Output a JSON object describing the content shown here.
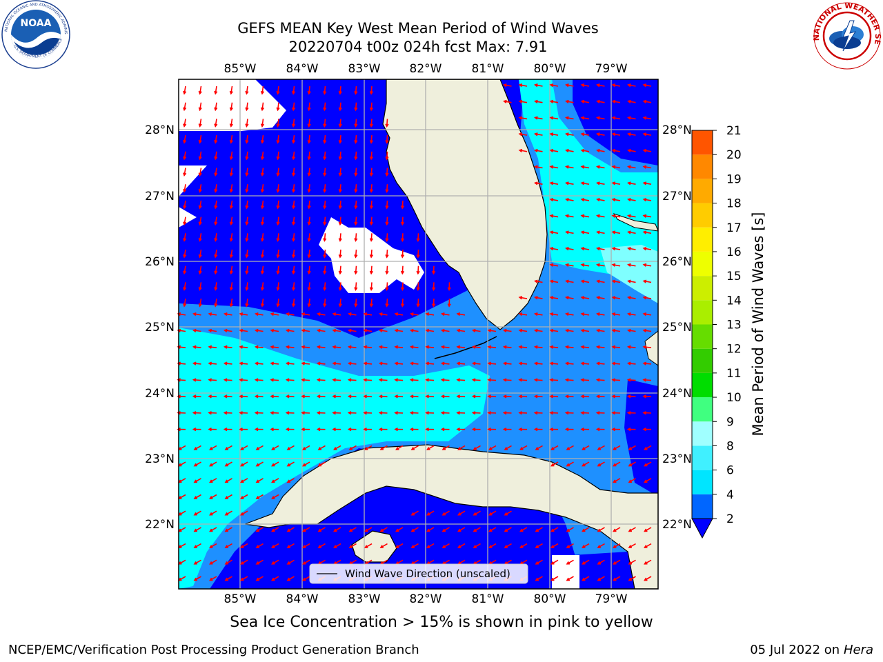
{
  "header": {
    "title_line1": "GEFS MEAN Key West Mean Period of Wind Waves",
    "title_line2": "20220704 t00z 024h fcst   Max: 7.91"
  },
  "logos": {
    "noaa": {
      "text": "NOAA",
      "ring_top": "NATIONAL OCEANIC AND ATMOSPHERIC ADMINISTRATION",
      "ring_bottom": "U.S. DEPARTMENT OF COMMERCE"
    },
    "nws": {
      "ring_text": "NATIONAL WEATHER SERVICE"
    }
  },
  "map": {
    "lon_ticks": [
      "85°W",
      "84°W",
      "83°W",
      "82°W",
      "81°W",
      "80°W",
      "79°W"
    ],
    "lat_ticks": [
      "28°N",
      "27°N",
      "26°N",
      "25°N",
      "24°N",
      "23°N",
      "22°N"
    ],
    "legend_label": "Wind Wave Direction (unscaled)",
    "colors": {
      "land": "#efefdc",
      "ocean_2_4": "#0000ff",
      "ocean_4_6": "#1e90ff",
      "ocean_6_8": "#00ffff",
      "arrow": "#ff0000"
    }
  },
  "colorbar": {
    "label": "Mean Period of Wind Waves [s]",
    "ticks": [
      "2",
      "4",
      "6",
      "8",
      "9",
      "10",
      "11",
      "12",
      "13",
      "14",
      "15",
      "16",
      "17",
      "18",
      "19",
      "20",
      "21"
    ],
    "colors": [
      "#0066ff",
      "#00e5ff",
      "#40f0ff",
      "#a0ffff",
      "#40ff80",
      "#00dd00",
      "#33cc00",
      "#66dd00",
      "#aaee00",
      "#ccee00",
      "#eeff00",
      "#ffee00",
      "#ffcc00",
      "#ffaa00",
      "#ff8800",
      "#ff5500",
      "#ff2200",
      "#ff0000"
    ]
  },
  "caption": "Sea Ice Concentration > 15% is shown in pink to yellow",
  "footer": {
    "left": "NCEP/EMC/Verification Post Processing Product Generation Branch",
    "date": "05 Jul 2022 on ",
    "host": "Hera"
  }
}
